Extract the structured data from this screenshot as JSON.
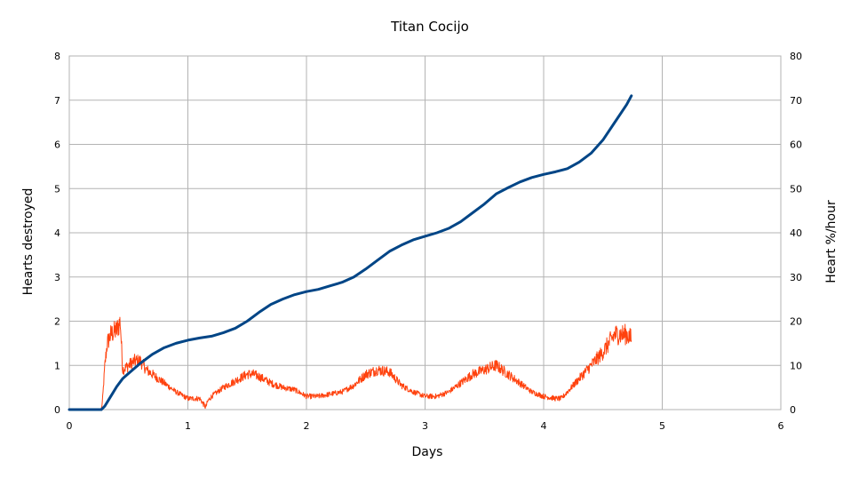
{
  "chart_data": {
    "type": "line",
    "title": "Titan Cocijo",
    "xlabel": "Days",
    "ylabel": "Hearts destroyed",
    "y2label": "Heart %/hour",
    "xlim": [
      0,
      6
    ],
    "ylim": [
      0,
      8
    ],
    "y2lim": [
      0,
      80
    ],
    "x_ticks": [
      "0",
      "1",
      "2",
      "3",
      "4",
      "5",
      "6"
    ],
    "y_ticks": [
      "0",
      "1",
      "2",
      "3",
      "4",
      "5",
      "6",
      "7",
      "8"
    ],
    "y2_ticks": [
      "0",
      "10",
      "20",
      "30",
      "40",
      "50",
      "60",
      "70",
      "80"
    ],
    "grid": true,
    "legend": "none",
    "series": [
      {
        "axis": "left",
        "color": "#004586",
        "x": [
          0,
          0.27,
          0.3,
          0.35,
          0.4,
          0.45,
          0.5,
          0.6,
          0.7,
          0.8,
          0.9,
          1.0,
          1.1,
          1.15,
          1.2,
          1.3,
          1.4,
          1.5,
          1.6,
          1.7,
          1.8,
          1.9,
          2.0,
          2.1,
          2.2,
          2.3,
          2.4,
          2.5,
          2.6,
          2.7,
          2.8,
          2.9,
          3.0,
          3.1,
          3.2,
          3.3,
          3.4,
          3.5,
          3.6,
          3.7,
          3.8,
          3.9,
          4.0,
          4.1,
          4.2,
          4.3,
          4.4,
          4.5,
          4.6,
          4.7,
          4.74
        ],
        "values": [
          0,
          0,
          0.08,
          0.3,
          0.52,
          0.7,
          0.82,
          1.05,
          1.25,
          1.4,
          1.5,
          1.57,
          1.62,
          1.64,
          1.66,
          1.74,
          1.84,
          2.0,
          2.2,
          2.38,
          2.5,
          2.6,
          2.67,
          2.72,
          2.8,
          2.88,
          3.0,
          3.18,
          3.38,
          3.58,
          3.72,
          3.84,
          3.92,
          4.0,
          4.1,
          4.25,
          4.45,
          4.65,
          4.88,
          5.02,
          5.15,
          5.25,
          5.32,
          5.38,
          5.45,
          5.6,
          5.8,
          6.1,
          6.5,
          6.9,
          7.1
        ]
      },
      {
        "axis": "right",
        "color": "#ff420e",
        "x": [
          0,
          0.27,
          0.28,
          0.3,
          0.32,
          0.35,
          0.4,
          0.43,
          0.45,
          0.5,
          0.55,
          0.6,
          0.65,
          0.7,
          0.8,
          0.9,
          1.0,
          1.1,
          1.15,
          1.17,
          1.2,
          1.3,
          1.4,
          1.5,
          1.55,
          1.6,
          1.7,
          1.8,
          1.9,
          2.0,
          2.1,
          2.2,
          2.3,
          2.4,
          2.5,
          2.6,
          2.7,
          2.8,
          2.9,
          3.0,
          3.1,
          3.2,
          3.3,
          3.4,
          3.5,
          3.6,
          3.7,
          3.8,
          3.9,
          4.0,
          4.1,
          4.15,
          4.2,
          4.3,
          4.4,
          4.5,
          4.6,
          4.7,
          4.74
        ],
        "values": [
          0,
          0,
          2,
          10,
          15,
          17,
          18,
          20,
          9,
          10,
          11,
          11,
          9,
          8,
          6,
          4,
          2.5,
          2.5,
          0.5,
          2,
          3,
          5,
          6.5,
          8,
          8,
          7.5,
          6,
          5,
          4.5,
          3,
          3,
          3.5,
          4,
          5.5,
          8,
          9,
          8.5,
          5.5,
          4,
          3,
          3,
          4,
          6,
          8,
          9,
          10,
          8,
          6,
          4,
          3,
          2.5,
          2.5,
          4,
          7,
          10,
          13,
          17,
          17,
          16
        ]
      }
    ]
  }
}
